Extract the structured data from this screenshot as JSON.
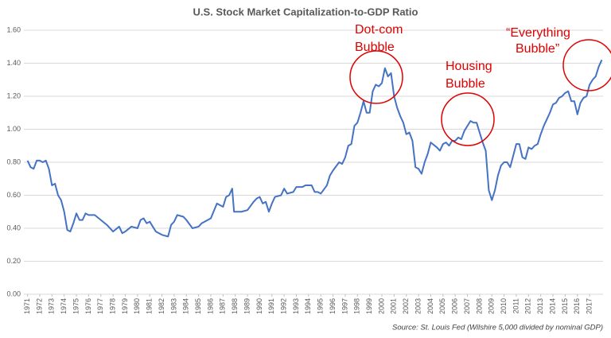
{
  "chart_data": {
    "type": "line",
    "title": "U.S. Stock Market Capitalization-to-GDP Ratio",
    "source": "Source: St. Louis Fed (Wilshire 5,000 divided by nominal GDP)",
    "annotations": [
      {
        "lines": [
          "Dot-com",
          "Bubble"
        ]
      },
      {
        "lines": [
          "Housing",
          "Bubble"
        ]
      },
      {
        "lines": [
          "“Everything",
          "Bubble”"
        ]
      }
    ],
    "color": "#4472c4",
    "grid": true,
    "xlim": [
      1970.7,
      2018.1
    ],
    "ylim": [
      0,
      1.6
    ],
    "yticks": [
      {
        "value": 0,
        "label": "0.00"
      },
      {
        "value": 0.2,
        "label": "0.20"
      },
      {
        "value": 0.4,
        "label": "0.40"
      },
      {
        "value": 0.6,
        "label": "0.60"
      },
      {
        "value": 0.8,
        "label": "0.80"
      },
      {
        "value": 1.0,
        "label": "1.00"
      },
      {
        "value": 1.2,
        "label": "1.20"
      },
      {
        "value": 1.4,
        "label": "1.40"
      },
      {
        "value": 1.6,
        "label": "1.60"
      }
    ],
    "xticks": [
      1971,
      1972,
      1973,
      1974,
      1975,
      1976,
      1977,
      1978,
      1979,
      1980,
      1981,
      1982,
      1983,
      1984,
      1985,
      1986,
      1987,
      1988,
      1989,
      1990,
      1991,
      1992,
      1993,
      1994,
      1995,
      1996,
      1997,
      1998,
      1999,
      2000,
      2001,
      2002,
      2003,
      2004,
      2005,
      2006,
      2007,
      2008,
      2009,
      2010,
      2011,
      2012,
      2013,
      2014,
      2015,
      2016,
      2017
    ],
    "x": [
      1971,
      1971.25,
      1971.5,
      1971.75,
      1972,
      1972.25,
      1972.5,
      1972.75,
      1973,
      1973.25,
      1973.5,
      1973.75,
      1974,
      1974.25,
      1974.5,
      1974.75,
      1975,
      1975.25,
      1975.5,
      1975.75,
      1976,
      1976.5,
      1977,
      1977.5,
      1978,
      1978.5,
      1978.75,
      1979,
      1979.5,
      1980,
      1980.25,
      1980.5,
      1980.75,
      1981,
      1981.25,
      1981.5,
      1982,
      1982.5,
      1982.75,
      1983,
      1983.25,
      1983.75,
      1984,
      1984.5,
      1985,
      1985.25,
      1985.75,
      1986,
      1986.5,
      1987,
      1987.25,
      1987.5,
      1987.75,
      1987.9,
      1988.5,
      1989,
      1989.5,
      1989.75,
      1990,
      1990.25,
      1990.5,
      1990.75,
      1991,
      1991.25,
      1991.75,
      1992,
      1992.25,
      1992.75,
      1993,
      1993.5,
      1993.75,
      1994.25,
      1994.5,
      1994.75,
      1995,
      1995.5,
      1995.75,
      1996,
      1996.5,
      1996.75,
      1997,
      1997.25,
      1997.5,
      1997.75,
      1998,
      1998.25,
      1998.5,
      1998.75,
      1999,
      1999.25,
      1999.5,
      1999.75,
      2000,
      2000.25,
      2000.5,
      2000.75,
      2001,
      2001.25,
      2001.5,
      2001.75,
      2002,
      2002.25,
      2002.5,
      2002.75,
      2003,
      2003.25,
      2003.5,
      2003.75,
      2004,
      2004.5,
      2004.75,
      2005,
      2005.25,
      2005.5,
      2005.75,
      2006,
      2006.25,
      2006.5,
      2006.75,
      2007,
      2007.25,
      2007.5,
      2007.75,
      2008,
      2008.25,
      2008.5,
      2008.75,
      2009,
      2009.25,
      2009.5,
      2009.75,
      2010,
      2010.25,
      2010.5,
      2010.75,
      2011,
      2011.25,
      2011.5,
      2011.75,
      2012,
      2012.25,
      2012.5,
      2012.75,
      2013,
      2013.25,
      2013.5,
      2013.75,
      2014,
      2014.25,
      2014.5,
      2014.75,
      2015,
      2015.25,
      2015.5,
      2015.75,
      2016,
      2016.25,
      2016.5,
      2016.75,
      2017,
      2017.25,
      2017.5,
      2017.75,
      2018
    ],
    "values": [
      0.81,
      0.77,
      0.76,
      0.81,
      0.81,
      0.8,
      0.81,
      0.76,
      0.66,
      0.67,
      0.6,
      0.57,
      0.5,
      0.39,
      0.38,
      0.43,
      0.49,
      0.45,
      0.45,
      0.49,
      0.48,
      0.48,
      0.45,
      0.42,
      0.38,
      0.41,
      0.37,
      0.38,
      0.41,
      0.4,
      0.45,
      0.46,
      0.43,
      0.44,
      0.41,
      0.38,
      0.36,
      0.35,
      0.42,
      0.44,
      0.48,
      0.47,
      0.45,
      0.4,
      0.41,
      0.43,
      0.45,
      0.46,
      0.55,
      0.53,
      0.59,
      0.6,
      0.64,
      0.5,
      0.5,
      0.51,
      0.56,
      0.58,
      0.59,
      0.55,
      0.56,
      0.5,
      0.55,
      0.59,
      0.6,
      0.64,
      0.61,
      0.62,
      0.65,
      0.65,
      0.66,
      0.66,
      0.62,
      0.62,
      0.61,
      0.66,
      0.72,
      0.75,
      0.8,
      0.79,
      0.83,
      0.9,
      0.91,
      1.02,
      1.04,
      1.1,
      1.17,
      1.1,
      1.1,
      1.23,
      1.27,
      1.26,
      1.28,
      1.37,
      1.32,
      1.34,
      1.2,
      1.13,
      1.08,
      1.04,
      0.97,
      0.98,
      0.93,
      0.77,
      0.76,
      0.73,
      0.8,
      0.85,
      0.92,
      0.89,
      0.87,
      0.91,
      0.92,
      0.9,
      0.93,
      0.93,
      0.95,
      0.94,
      0.99,
      1.02,
      1.05,
      1.04,
      1.04,
      0.98,
      0.92,
      0.87,
      0.63,
      0.57,
      0.63,
      0.72,
      0.78,
      0.8,
      0.8,
      0.77,
      0.84,
      0.91,
      0.91,
      0.83,
      0.82,
      0.89,
      0.88,
      0.9,
      0.91,
      0.97,
      1.02,
      1.06,
      1.1,
      1.15,
      1.16,
      1.19,
      1.2,
      1.22,
      1.23,
      1.17,
      1.17,
      1.09,
      1.16,
      1.19,
      1.2,
      1.27,
      1.3,
      1.32,
      1.38,
      1.42
    ]
  }
}
